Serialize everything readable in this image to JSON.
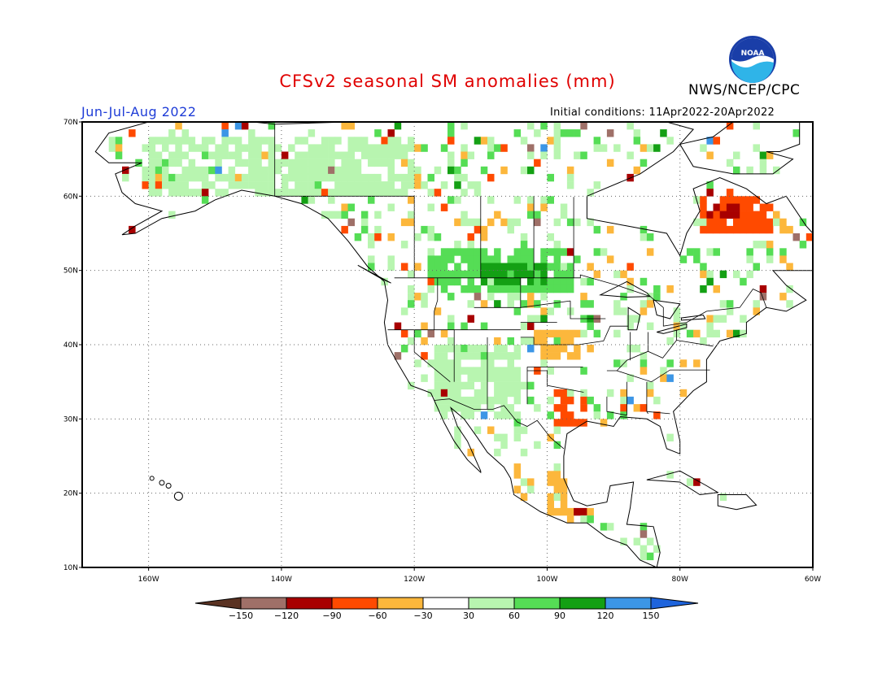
{
  "title": "CFSv2 seasonal SM anomalies (mm)",
  "agency": "NWS/NCEP/CPC",
  "logo_text": "NOAA",
  "period": "Jun-Jul-Aug 2022",
  "initial_conditions": "Initial conditions: 11Apr2022-20Apr2022",
  "map": {
    "lon_range": [
      -170,
      -60
    ],
    "lat_range": [
      10,
      70
    ],
    "lon_ticks": [
      {
        "v": -160,
        "label": "160W"
      },
      {
        "v": -140,
        "label": "140W"
      },
      {
        "v": -120,
        "label": "120W"
      },
      {
        "v": -100,
        "label": "100W"
      },
      {
        "v": -80,
        "label": "80W"
      },
      {
        "v": -60,
        "label": "60W"
      }
    ],
    "lat_ticks": [
      {
        "v": 10,
        "label": "10N"
      },
      {
        "v": 20,
        "label": "20N"
      },
      {
        "v": 30,
        "label": "30N"
      },
      {
        "v": 40,
        "label": "40N"
      },
      {
        "v": 50,
        "label": "50N"
      },
      {
        "v": 60,
        "label": "60N"
      },
      {
        "v": 70,
        "label": "70N"
      }
    ],
    "gridlines": "dotted"
  },
  "colorbar": {
    "labels": [
      "-150",
      "-120",
      "-90",
      "-60",
      "-30",
      "30",
      "60",
      "90",
      "120",
      "150"
    ],
    "colors": [
      "#5a3222",
      "#9f7068",
      "#a80000",
      "#ff4a00",
      "#fcb73c",
      "#ffffff",
      "#b8f5b0",
      "#55dd55",
      "#14a014",
      "#3c96e6",
      "#1e64dc"
    ]
  },
  "anomaly_regions": [
    {
      "category": "wet_light",
      "lon": [
        -160,
        -120
      ],
      "lat": [
        60,
        68
      ]
    },
    {
      "category": "wet_moderate",
      "lon": [
        -118,
        -96
      ],
      "lat": [
        47,
        53
      ]
    },
    {
      "category": "wet_strong",
      "lon": [
        -110,
        -100
      ],
      "lat": [
        48,
        51
      ]
    },
    {
      "category": "dry_moderate",
      "lon": [
        -77,
        -66
      ],
      "lat": [
        55,
        60
      ]
    },
    {
      "category": "dry_strong",
      "lon": [
        -76,
        -70
      ],
      "lat": [
        57,
        59
      ]
    },
    {
      "category": "dry_light",
      "lon": [
        -102,
        -95
      ],
      "lat": [
        38,
        42
      ]
    },
    {
      "category": "dry_moderate",
      "lon": [
        -99,
        -94
      ],
      "lat": [
        29,
        34
      ]
    },
    {
      "category": "wet_light",
      "lon": [
        -118,
        -104
      ],
      "lat": [
        30,
        40
      ]
    },
    {
      "category": "dry_light",
      "lon": [
        -100,
        -96
      ],
      "lat": [
        15,
        23
      ]
    }
  ]
}
